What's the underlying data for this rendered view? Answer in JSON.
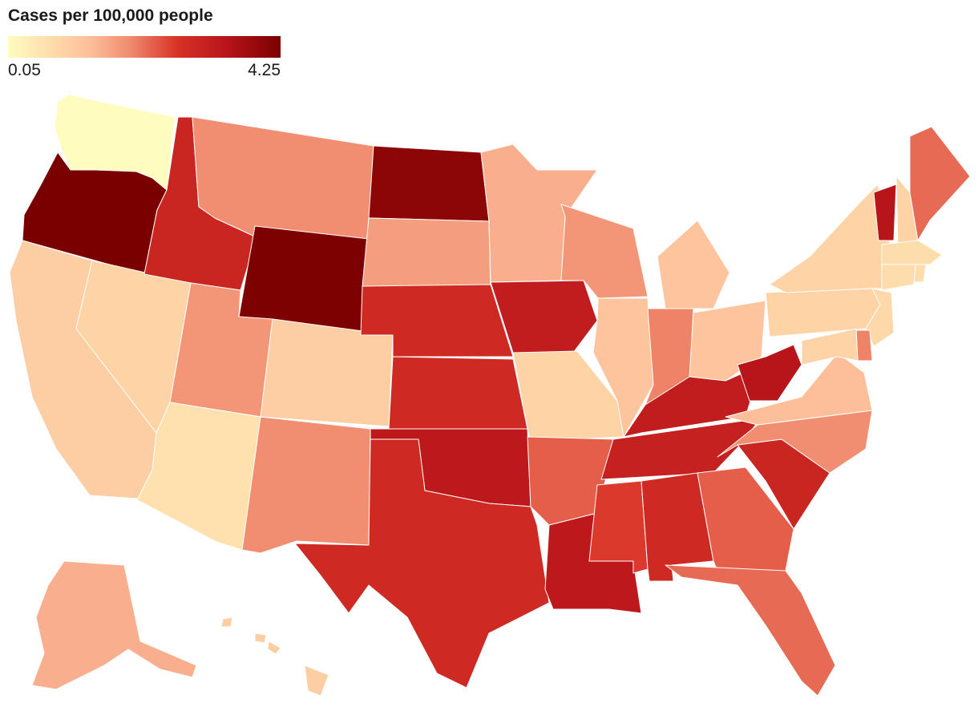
{
  "legend": {
    "title": "Cases per 100,000 people",
    "min_label": "0.05",
    "max_label": "4.25",
    "min_value": 0.05,
    "max_value": 4.25,
    "gradient_colors": [
      "#fffcc0",
      "#fdbf9a",
      "#f08a6e",
      "#d83226",
      "#b8151b",
      "#7a0000"
    ]
  },
  "chart_data": {
    "type": "choropleth",
    "title": "Cases per 100,000 people",
    "value_range": [
      0.05,
      4.25
    ],
    "states": [
      {
        "code": "WA",
        "value": 0.05
      },
      {
        "code": "OR",
        "value": 4.25
      },
      {
        "code": "CA",
        "value": 1.0
      },
      {
        "code": "NV",
        "value": 0.9
      },
      {
        "code": "ID",
        "value": 3.0
      },
      {
        "code": "MT",
        "value": 1.9
      },
      {
        "code": "WY",
        "value": 4.2
      },
      {
        "code": "UT",
        "value": 1.8
      },
      {
        "code": "AZ",
        "value": 0.6
      },
      {
        "code": "CO",
        "value": 1.0
      },
      {
        "code": "NM",
        "value": 1.9
      },
      {
        "code": "ND",
        "value": 4.0
      },
      {
        "code": "SD",
        "value": 1.7
      },
      {
        "code": "NE",
        "value": 2.9
      },
      {
        "code": "KS",
        "value": 2.9
      },
      {
        "code": "OK",
        "value": 3.3
      },
      {
        "code": "TX",
        "value": 2.9
      },
      {
        "code": "MN",
        "value": 1.5
      },
      {
        "code": "IA",
        "value": 3.2
      },
      {
        "code": "MO",
        "value": 0.9
      },
      {
        "code": "AR",
        "value": 2.3
      },
      {
        "code": "LA",
        "value": 3.3
      },
      {
        "code": "WI",
        "value": 1.8
      },
      {
        "code": "IL",
        "value": 1.2
      },
      {
        "code": "MI",
        "value": 1.2
      },
      {
        "code": "IN",
        "value": 2.0
      },
      {
        "code": "OH",
        "value": 1.2
      },
      {
        "code": "KY",
        "value": 3.2
      },
      {
        "code": "TN",
        "value": 3.1
      },
      {
        "code": "MS",
        "value": 2.6
      },
      {
        "code": "AL",
        "value": 2.9
      },
      {
        "code": "GA",
        "value": 2.3
      },
      {
        "code": "FL",
        "value": 2.2
      },
      {
        "code": "SC",
        "value": 3.0
      },
      {
        "code": "NC",
        "value": 1.9
      },
      {
        "code": "VA",
        "value": 1.3
      },
      {
        "code": "WV",
        "value": 3.4
      },
      {
        "code": "PA",
        "value": 0.9
      },
      {
        "code": "NY",
        "value": 0.9
      },
      {
        "code": "VT",
        "value": 3.4
      },
      {
        "code": "NH",
        "value": 0.9
      },
      {
        "code": "ME",
        "value": 2.2
      },
      {
        "code": "MA",
        "value": 0.7
      },
      {
        "code": "RI",
        "value": 0.7
      },
      {
        "code": "CT",
        "value": 0.7
      },
      {
        "code": "NJ",
        "value": 0.8
      },
      {
        "code": "DE",
        "value": 2.0
      },
      {
        "code": "MD",
        "value": 0.9
      },
      {
        "code": "AK",
        "value": 1.5
      },
      {
        "code": "HI",
        "value": 1.0
      }
    ]
  }
}
